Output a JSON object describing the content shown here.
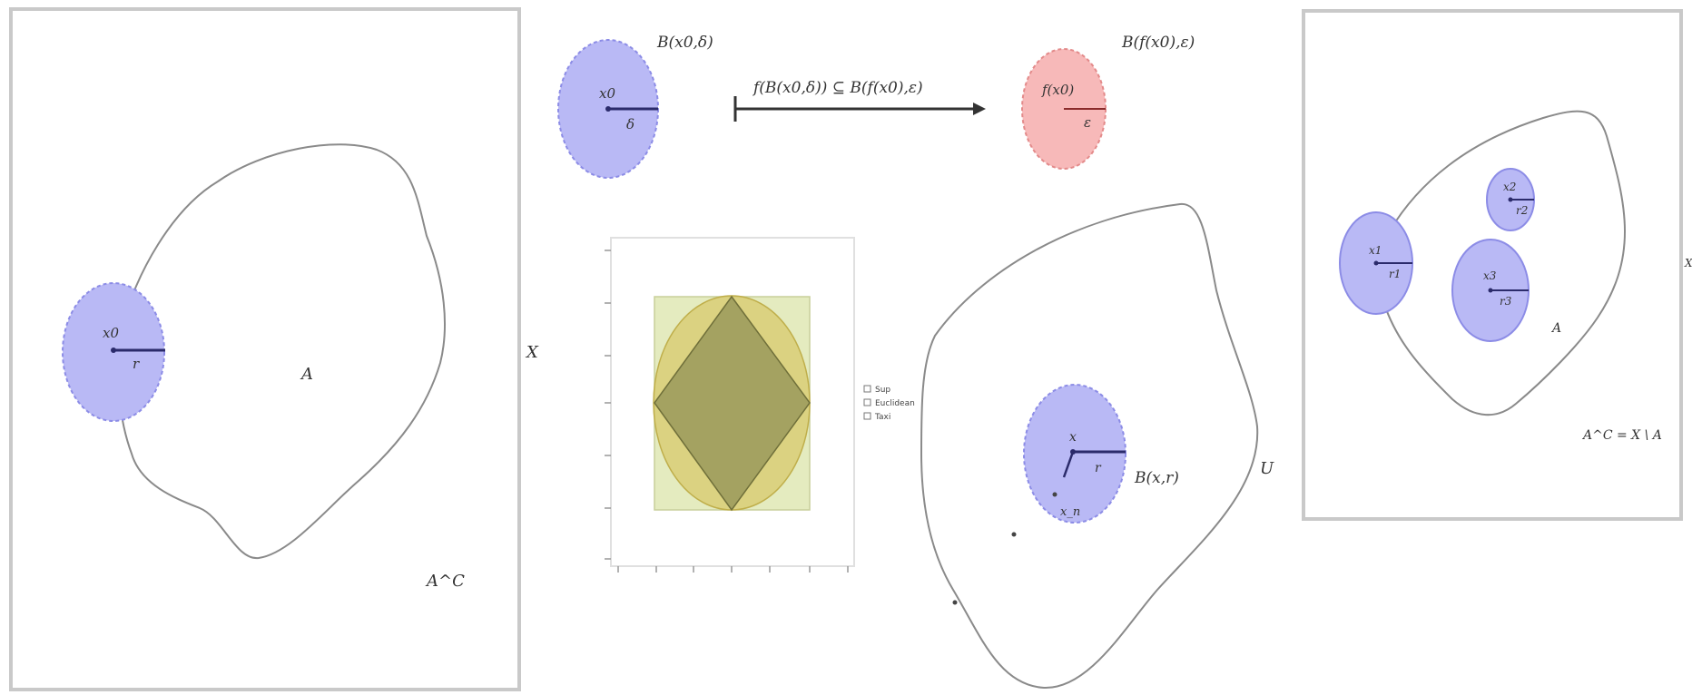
{
  "panel_boundary": {
    "point_label": "x0",
    "radius_label": "r",
    "set_label": "A",
    "complement_label": "A^C"
  },
  "continuity": {
    "ball_domain_label": "B(x0,δ)",
    "center_domain": "x0",
    "radius_domain": "δ",
    "mapping_label": "f(B(x0,δ)) ⊆ B(f(x0),ε)",
    "ball_codomain_label": "B(f(x0),ε)",
    "center_codomain": "f(x0)",
    "radius_codomain": "ε"
  },
  "side_label_X": "X",
  "norm_plot": {
    "legend": [
      "Sup",
      "Euclidean",
      "Taxi"
    ],
    "colors": {
      "outer": "#e4ebbf",
      "mid": "#d8c96c",
      "inner": "#9a9a5c"
    }
  },
  "open_set": {
    "center_label": "x",
    "radius_label": "r",
    "ball_label": "B(x,r)",
    "point_label": "x_n",
    "set_label": "U"
  },
  "closed_set": {
    "ball1_center": "x1",
    "ball1_radius": "r1",
    "ball2_center": "x2",
    "ball2_radius": "r2",
    "ball3_center": "x3",
    "ball3_radius": "r3",
    "set_label": "A",
    "complement_label": "A^C = X \\ A",
    "edge_label": "X"
  },
  "colors": {
    "ball_blue": "#b9b9f5",
    "ball_blue_stroke": "#8c8ce6",
    "ball_red": "#f7b9b9",
    "ball_red_stroke": "#e38a8a",
    "frame": "#bdbdbd",
    "curve": "#8a8a8a"
  }
}
